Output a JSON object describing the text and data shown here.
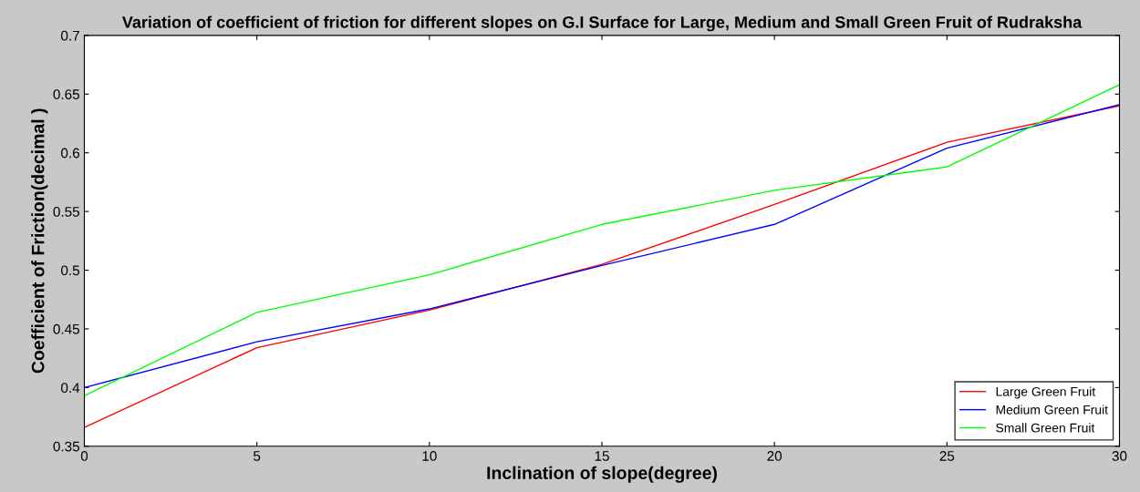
{
  "chart_data": {
    "type": "line",
    "title": "Variation of coefficient of friction for different slopes on G.I Surface for Large, Medium and Small Green Fruit of Rudraksha",
    "xlabel": "Inclination of slope(degree)",
    "ylabel": "Coefficient of Friction(decimal )",
    "x": [
      0,
      5,
      10,
      15,
      20,
      25,
      30
    ],
    "series": [
      {
        "name": "Large Green Fruit",
        "color": "#ff0000",
        "values": [
          0.366,
          0.434,
          0.466,
          0.505,
          0.556,
          0.609,
          0.64
        ]
      },
      {
        "name": "Medium Green Fruit",
        "color": "#0000ff",
        "values": [
          0.4,
          0.439,
          0.467,
          0.504,
          0.539,
          0.604,
          0.641
        ]
      },
      {
        "name": "Small Green Fruit",
        "color": "#00ff00",
        "values": [
          0.393,
          0.464,
          0.496,
          0.539,
          0.568,
          0.588,
          0.658
        ]
      }
    ],
    "xlim": [
      0,
      30
    ],
    "xticks": [
      0,
      5,
      10,
      15,
      20,
      25,
      30
    ],
    "ylim": [
      0.35,
      0.7
    ],
    "yticks": [
      0.35,
      0.4,
      0.45,
      0.5,
      0.55,
      0.6,
      0.65,
      0.7
    ],
    "grid": false,
    "legend": "bottom right",
    "marker": "none",
    "line_style": "solid"
  }
}
